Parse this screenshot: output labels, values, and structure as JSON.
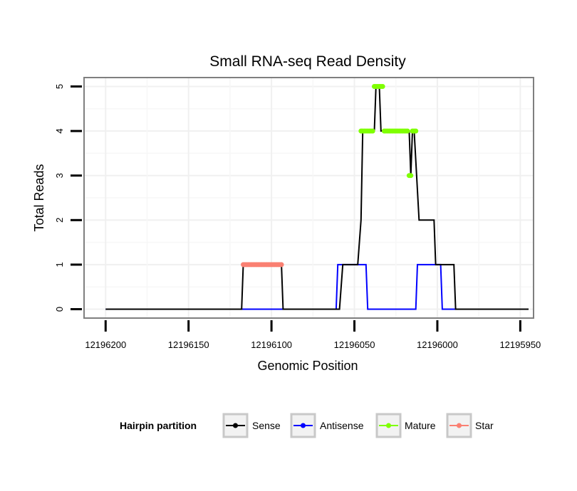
{
  "chart_data": {
    "type": "line",
    "title": "Small RNA-seq Read Density",
    "xlabel": "Genomic Position",
    "ylabel": "Total Reads",
    "x_reversed": true,
    "xlim": [
      12196213,
      12195942
    ],
    "ylim": [
      -0.2,
      5.2
    ],
    "x_ticks": [
      12196200,
      12196150,
      12196100,
      12196050,
      12196000,
      12195950
    ],
    "x_tick_labels": [
      "12196200",
      "12196150",
      "12196100",
      "12196050",
      "12196000",
      "12195950"
    ],
    "y_ticks": [
      0,
      1,
      2,
      3,
      4,
      5
    ],
    "y_tick_labels": [
      "0",
      "1",
      "2",
      "3",
      "4",
      "5"
    ],
    "grid": true,
    "legend": {
      "title": "Hairpin partition",
      "position": "bottom",
      "entries": [
        {
          "label": "Sense",
          "color": "#000000"
        },
        {
          "label": "Antisense",
          "color": "#0000ff"
        },
        {
          "label": "Mature",
          "color": "#7fff00"
        },
        {
          "label": "Star",
          "color": "#fa8072"
        }
      ]
    },
    "series": [
      {
        "name": "Sense",
        "color": "#000000",
        "kind": "line",
        "x": [
          12196200,
          12196118,
          12196117,
          12196094,
          12196093,
          12196059,
          12196057,
          12196048,
          12196046,
          12196045,
          12196043,
          12196038,
          12196037,
          12196035,
          12196034,
          12196029,
          12196028,
          12196019,
          12196017,
          12196016,
          12196015,
          12196014,
          12196011,
          12196010,
          12196008,
          12196002,
          12196001,
          12195994,
          12195993,
          12195990,
          12195989,
          12195945
        ],
        "y": [
          0,
          0,
          1,
          1,
          0,
          0,
          1,
          1,
          2,
          4,
          4,
          4,
          5,
          5,
          4,
          4,
          4,
          4,
          4,
          3,
          4,
          4,
          2,
          2,
          2,
          2,
          1,
          1,
          1,
          1,
          0,
          0
        ]
      },
      {
        "name": "Antisense",
        "color": "#0000ff",
        "kind": "line",
        "x": [
          12196200,
          12196061,
          12196060,
          12196043,
          12196042,
          12196013,
          12196012,
          12195998,
          12195997,
          12195945
        ],
        "y": [
          0,
          0,
          1,
          1,
          0,
          0,
          1,
          1,
          0,
          0
        ]
      },
      {
        "name": "Mature",
        "color": "#7fff00",
        "kind": "points",
        "x": [
          12196046,
          12196045,
          12196044,
          12196043,
          12196042,
          12196041,
          12196040,
          12196039,
          12196038,
          12196037,
          12196036,
          12196035,
          12196034,
          12196033,
          12196032,
          12196031,
          12196030,
          12196029,
          12196028,
          12196027,
          12196026,
          12196025,
          12196024,
          12196023,
          12196022,
          12196021,
          12196020,
          12196019,
          12196018,
          12196017,
          12196016,
          12196015,
          12196014,
          12196013
        ],
        "y": [
          4,
          4,
          4,
          4,
          4,
          4,
          4,
          4,
          5,
          5,
          5,
          5,
          5,
          5,
          4,
          4,
          4,
          4,
          4,
          4,
          4,
          4,
          4,
          4,
          4,
          4,
          4,
          4,
          4,
          3,
          3,
          4,
          4,
          4
        ]
      },
      {
        "name": "Star",
        "color": "#fa8072",
        "kind": "points",
        "x": [
          12196117,
          12196116,
          12196115,
          12196114,
          12196113,
          12196112,
          12196111,
          12196110,
          12196109,
          12196108,
          12196107,
          12196106,
          12196105,
          12196104,
          12196103,
          12196102,
          12196101,
          12196100,
          12196099,
          12196098,
          12196097,
          12196096,
          12196095,
          12196094
        ],
        "y": [
          1,
          1,
          1,
          1,
          1,
          1,
          1,
          1,
          1,
          1,
          1,
          1,
          1,
          1,
          1,
          1,
          1,
          1,
          1,
          1,
          1,
          1,
          1,
          1
        ]
      }
    ]
  }
}
